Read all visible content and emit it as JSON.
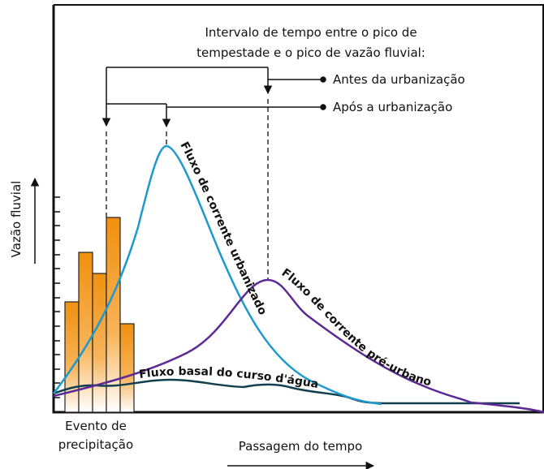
{
  "title": [
    "Intervalo de tempo entre o pico de",
    "tempestade e o pico de vazão fluvial:"
  ],
  "legend": [
    "Antes da urbanização",
    "Após a urbanização"
  ],
  "curves": [
    "Fluxo de corrente urbanizado",
    "Fluxo de corrente pré-urbano",
    "Fluxo basal do curso d'água"
  ],
  "y_axis_label": "Vazão fluvial",
  "x_axis_label": "Passagem do tempo",
  "precipitation_label": [
    "Evento de",
    "precipitação"
  ]
}
